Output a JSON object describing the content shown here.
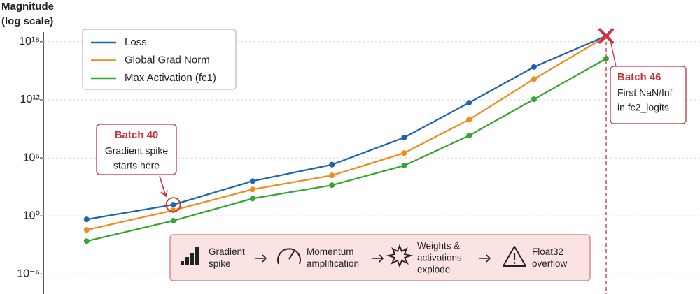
{
  "chart_data": {
    "type": "line",
    "y_label": [
      "Magnitude",
      "(log scale)"
    ],
    "log_y": true,
    "x": [
      38.8,
      40,
      41.1,
      42.2,
      43.2,
      44.1,
      45,
      46
    ],
    "xlim": [
      38.2,
      47.3
    ],
    "ylim": [
      1e-08,
      1e+19
    ],
    "yticks": [
      {
        "value": 1e+18,
        "label": "10¹⁸"
      },
      {
        "value": 1000000000000.0,
        "label": "10¹²"
      },
      {
        "value": 1000000.0,
        "label": "10⁶"
      },
      {
        "value": 1,
        "label": "10⁰"
      },
      {
        "value": 1e-06,
        "label": "10⁻⁶"
      }
    ],
    "grid": true,
    "legend": "upper left",
    "series": [
      {
        "name": "Loss",
        "color": "#1f63b0",
        "values": [
          0.44,
          14.5,
          3980,
          200000.0,
          126000000.0,
          500000000000.0,
          2500000000000000.0,
          4e+18
        ]
      },
      {
        "name": "Global Grad Norm",
        "color": "#f28a1c",
        "values": [
          0.036,
          3.8,
          550,
          15500,
          3200000.0,
          9000000000.0,
          140000000000000.0,
          3.5e+18
        ]
      },
      {
        "name": "Max Activation (fc1)",
        "color": "#35a532",
        "values": [
          0.0025,
          0.32,
          63,
          1500,
          160000.0,
          200000000.0,
          1150000000000.0,
          1.8e+16
        ]
      }
    ],
    "annotations": [
      {
        "title": "Batch 40",
        "lines": [
          "Gradient spike",
          "starts here"
        ]
      },
      {
        "title": "Batch 46",
        "lines": [
          "First NaN/Inf",
          "in fc2_logits"
        ]
      }
    ],
    "flow": [
      [
        "Gradient",
        "spike"
      ],
      [
        "Momentum",
        "amplification"
      ],
      [
        "Weights &",
        "activations",
        "explode"
      ],
      [
        "Float32",
        "overflow"
      ]
    ]
  }
}
